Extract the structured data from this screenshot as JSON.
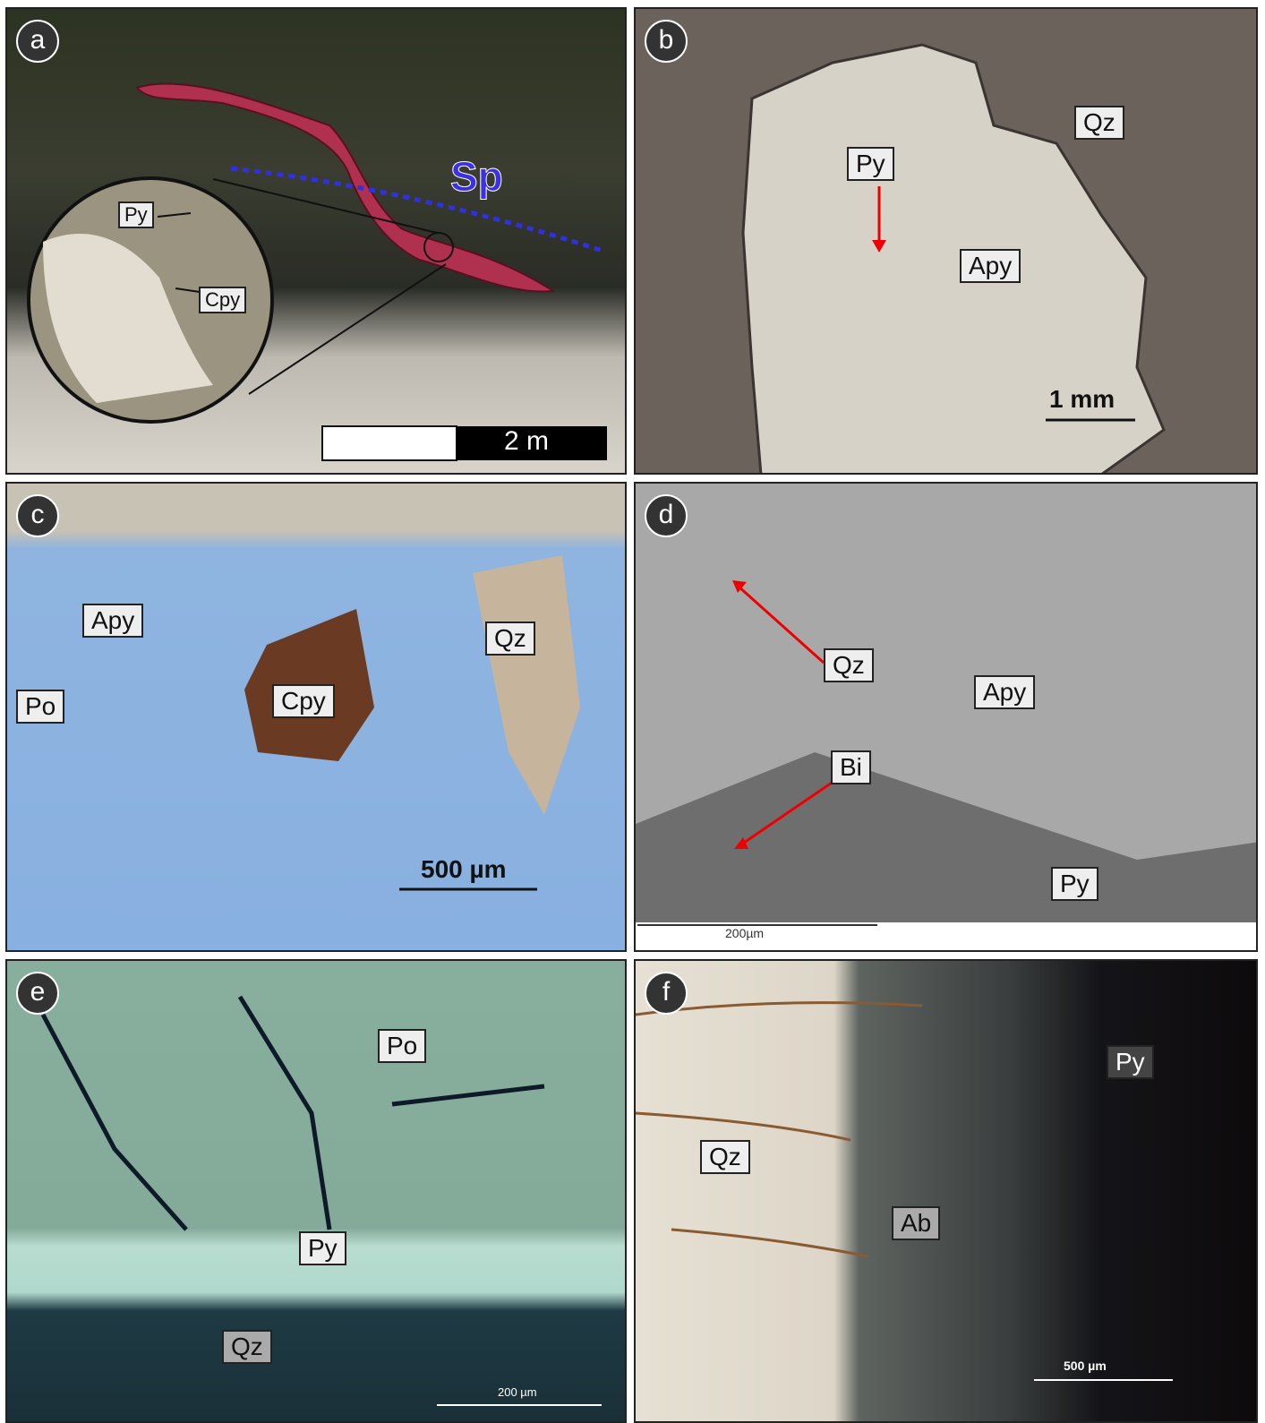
{
  "panels": [
    {
      "letter": "a",
      "labels": [
        "Py",
        "Cpy",
        "Sp"
      ],
      "scale": "2 m"
    },
    {
      "letter": "b",
      "labels": [
        "Qz",
        "Py",
        "Apy"
      ],
      "scale": "1 mm"
    },
    {
      "letter": "c",
      "labels": [
        "Apy",
        "Qz",
        "Po",
        "Cpy"
      ],
      "scale": "500 µm"
    },
    {
      "letter": "d",
      "labels": [
        "Qz",
        "Apy",
        "Bi",
        "Py"
      ],
      "scale": "200µm"
    },
    {
      "letter": "e",
      "labels": [
        "Po",
        "Py",
        "Qz"
      ],
      "scale": "200 µm"
    },
    {
      "letter": "f",
      "labels": [
        "Qz",
        "Py",
        "Ab"
      ],
      "scale": "500 µm"
    }
  ]
}
